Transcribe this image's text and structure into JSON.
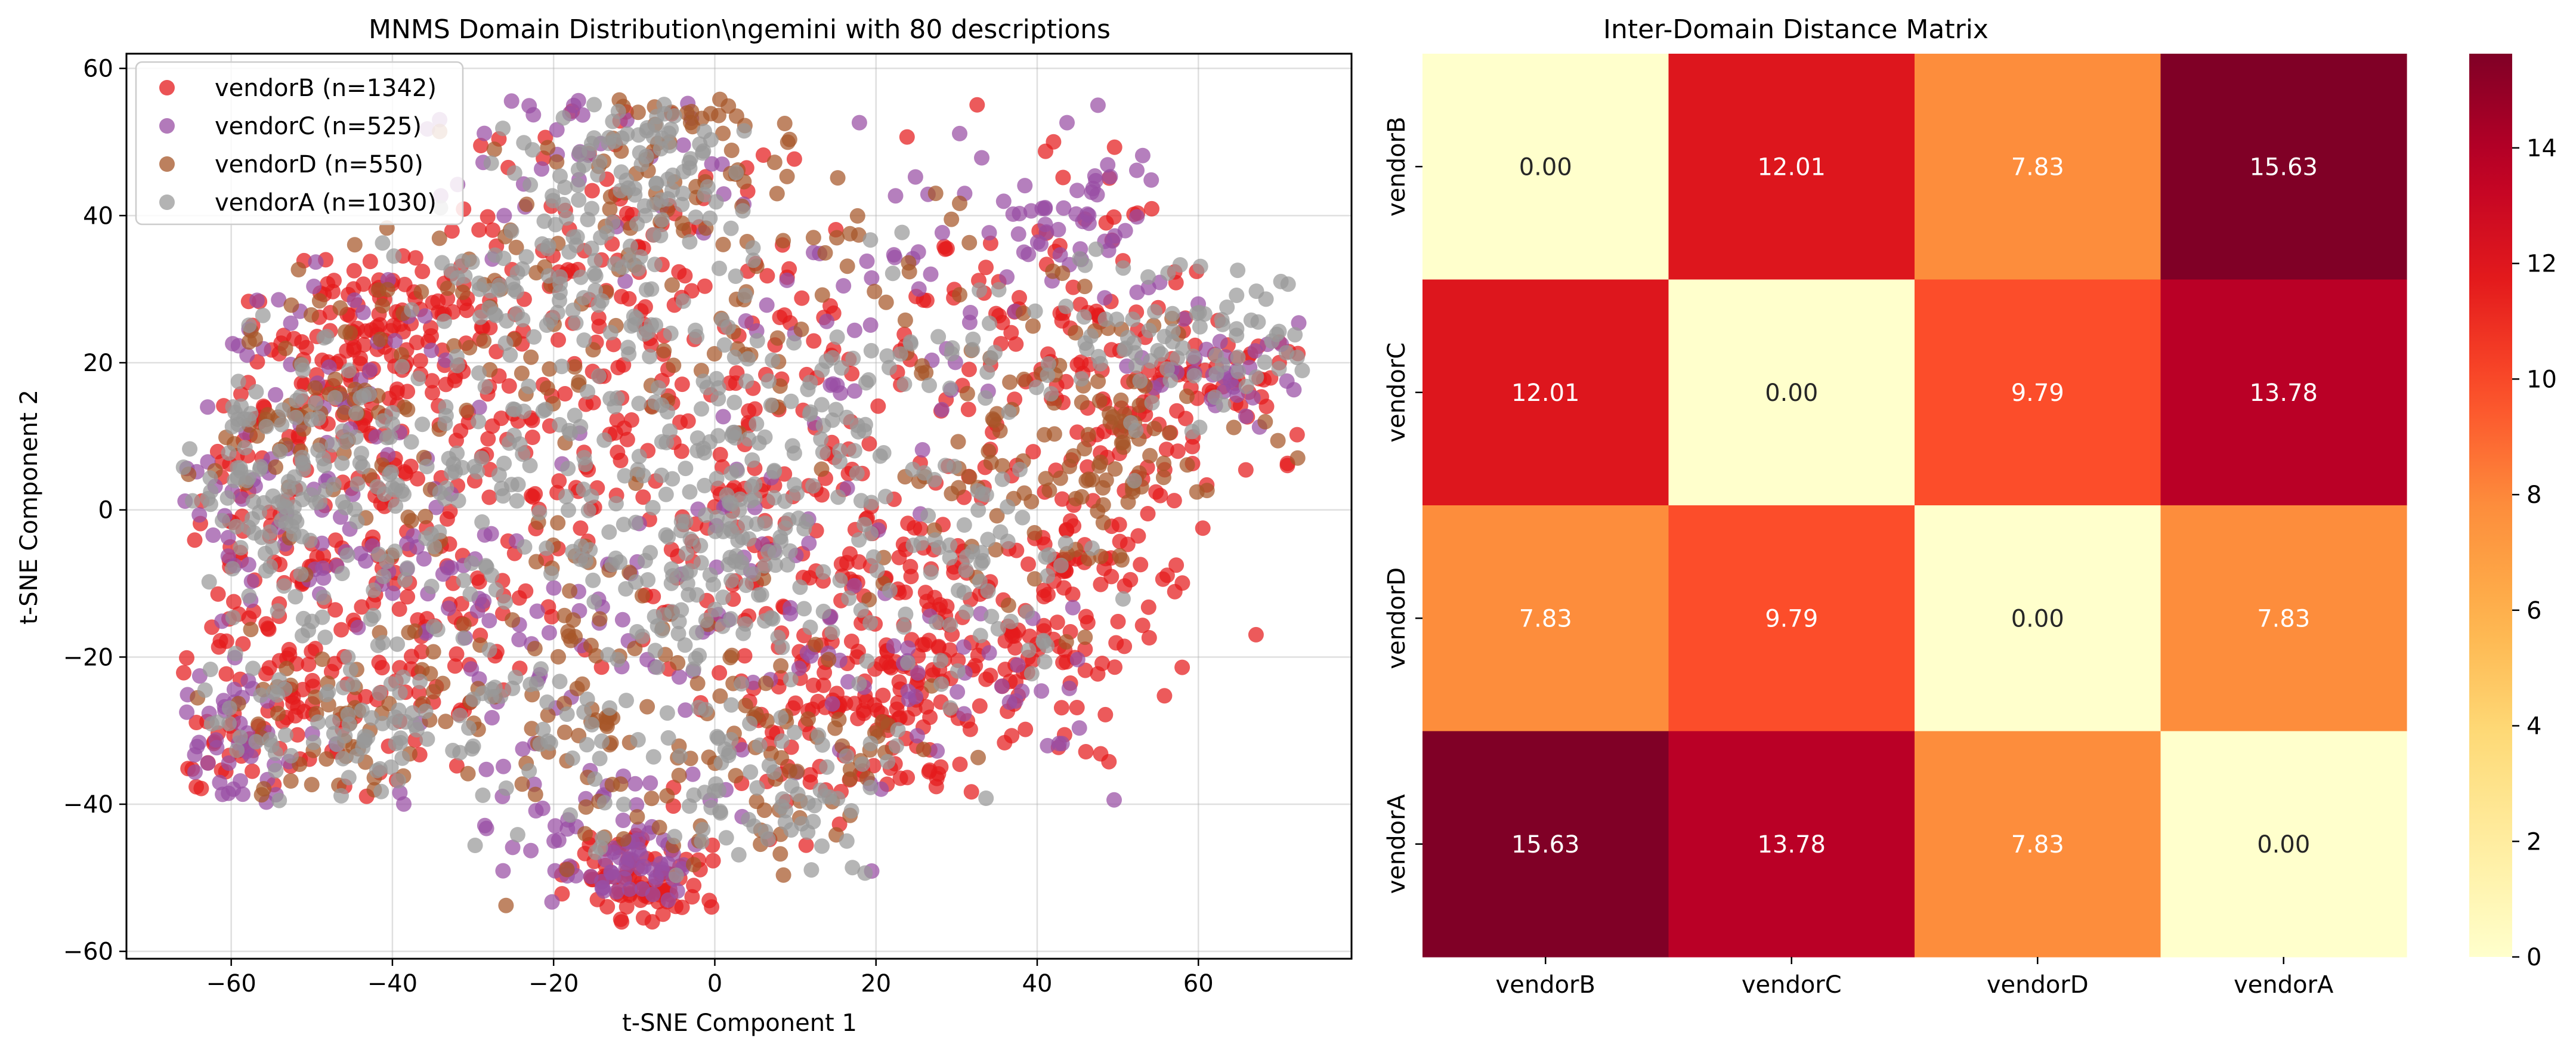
{
  "chart_data": [
    {
      "type": "scatter",
      "title": "MNMS Domain Distribution\\ngemini with 80 descriptions",
      "xlabel": "t-SNE Component 1",
      "ylabel": "t-SNE Component 2",
      "xlim": [
        -73,
        79
      ],
      "ylim": [
        -61,
        62
      ],
      "xticks": [
        -60,
        -40,
        -20,
        0,
        20,
        40,
        60
      ],
      "yticks": [
        -60,
        -40,
        -20,
        0,
        20,
        40,
        60
      ],
      "tick_labels_x": [
        "−60",
        "−40",
        "−20",
        "0",
        "20",
        "40",
        "60"
      ],
      "tick_labels_y": [
        "−60",
        "−40",
        "−20",
        "0",
        "20",
        "40",
        "60"
      ],
      "grid": true,
      "legend_position": "top-left",
      "series": [
        {
          "name": "vendorB (n=1342)",
          "color": "#e41a1c",
          "count": 1342
        },
        {
          "name": "vendorC (n=525)",
          "color": "#984ea3",
          "count": 525
        },
        {
          "name": "vendorD (n=550)",
          "color": "#a65628",
          "count": 550
        },
        {
          "name": "vendorA (n=1030)",
          "color": "#999999",
          "count": 1030
        }
      ]
    },
    {
      "type": "heatmap",
      "title": "Inter-Domain Distance Matrix",
      "rows": [
        "vendorB",
        "vendorC",
        "vendorD",
        "vendorA"
      ],
      "cols": [
        "vendorB",
        "vendorC",
        "vendorD",
        "vendorA"
      ],
      "values": [
        [
          0.0,
          12.01,
          7.83,
          15.63
        ],
        [
          12.01,
          0.0,
          9.79,
          13.78
        ],
        [
          7.83,
          9.79,
          0.0,
          7.83
        ],
        [
          15.63,
          13.78,
          7.83,
          0.0
        ]
      ],
      "value_labels": [
        [
          "0.00",
          "12.01",
          "7.83",
          "15.63"
        ],
        [
          "12.01",
          "0.00",
          "9.79",
          "13.78"
        ],
        [
          "7.83",
          "9.79",
          "0.00",
          "7.83"
        ],
        [
          "15.63",
          "13.78",
          "7.83",
          "0.00"
        ]
      ],
      "colormap": "YlOrRd",
      "colorbar_range": [
        0,
        15.63
      ],
      "colorbar_ticks": [
        0,
        2,
        4,
        6,
        8,
        10,
        12,
        14
      ],
      "colorbar_tick_labels": [
        "0",
        "2",
        "4",
        "6",
        "8",
        "10",
        "12",
        "14"
      ]
    }
  ]
}
